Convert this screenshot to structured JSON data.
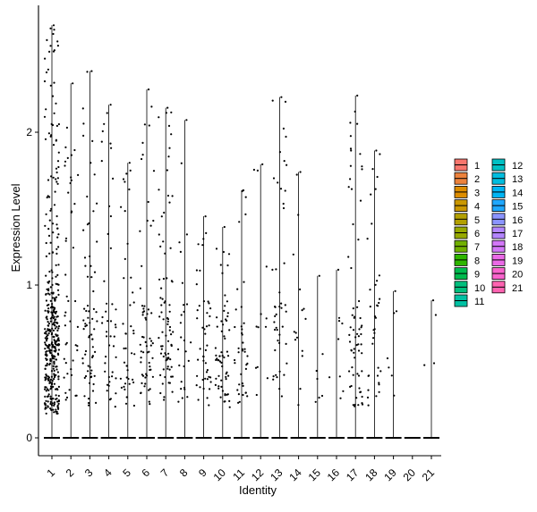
{
  "chart_data": {
    "type": "violin",
    "xlabel": "Identity",
    "ylabel": "Expression Level",
    "ylim": [
      -0.12,
      2.85
    ],
    "yticks": [
      0,
      1,
      2
    ],
    "categories": [
      "1",
      "2",
      "3",
      "4",
      "5",
      "6",
      "7",
      "8",
      "9",
      "10",
      "11",
      "12",
      "13",
      "14",
      "15",
      "16",
      "17",
      "18",
      "19",
      "20",
      "21"
    ],
    "max_values": [
      2.7,
      2.32,
      2.4,
      2.18,
      1.8,
      2.28,
      2.16,
      2.08,
      1.45,
      1.38,
      1.62,
      1.79,
      2.23,
      1.74,
      1.06,
      1.1,
      2.24,
      1.88,
      0.96,
      0,
      0.9
    ],
    "legend": {
      "position": "right",
      "entries": [
        {
          "label": "1",
          "color": "#F8766D"
        },
        {
          "label": "2",
          "color": "#EC823C"
        },
        {
          "label": "3",
          "color": "#DD8D00"
        },
        {
          "label": "4",
          "color": "#CA9700"
        },
        {
          "label": "5",
          "color": "#B3A000"
        },
        {
          "label": "6",
          "color": "#97A900"
        },
        {
          "label": "7",
          "color": "#71B000"
        },
        {
          "label": "8",
          "color": "#2FB600"
        },
        {
          "label": "9",
          "color": "#00BB4E"
        },
        {
          "label": "10",
          "color": "#00BF7D"
        },
        {
          "label": "11",
          "color": "#00C1A3"
        },
        {
          "label": "12",
          "color": "#00C0C4"
        },
        {
          "label": "13",
          "color": "#00BDDF"
        },
        {
          "label": "14",
          "color": "#00B5F5"
        },
        {
          "label": "15",
          "color": "#1EA7FF"
        },
        {
          "label": "16",
          "color": "#8B94FF"
        },
        {
          "label": "17",
          "color": "#B385FF"
        },
        {
          "label": "18",
          "color": "#D377F8"
        },
        {
          "label": "19",
          "color": "#EA6AE6"
        },
        {
          "label": "20",
          "color": "#F964CD"
        },
        {
          "label": "21",
          "color": "#FF63B1"
        }
      ]
    }
  }
}
